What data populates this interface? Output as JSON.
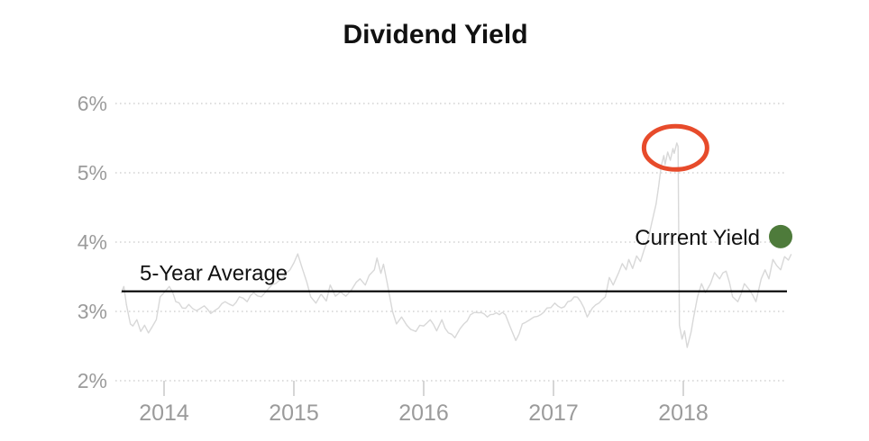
{
  "title": "Dividend Yield",
  "colors": {
    "title_text": "#111111",
    "axis_text": "#9b9b9b",
    "gridline": "#d4d4d4",
    "tick_mark": "#cccccc",
    "series_line": "#d8d8d8",
    "average_line": "#000000",
    "current_yield_dot": "#4e7b3b",
    "highlight_ellipse": "#e74b2b"
  },
  "chart_data": {
    "type": "line",
    "title": "Dividend Yield",
    "xlabel": "",
    "ylabel": "",
    "xlim": [
      2013.6,
      2018.92
    ],
    "ylim": [
      1.85,
      6.35
    ],
    "grid": "horizontal-dotted",
    "x_ticks": [
      {
        "value": 2014,
        "label": "2014"
      },
      {
        "value": 2015,
        "label": "2015"
      },
      {
        "value": 2016,
        "label": "2016"
      },
      {
        "value": 2017,
        "label": "2017"
      },
      {
        "value": 2018,
        "label": "2018"
      }
    ],
    "y_ticks": [
      {
        "value": 6,
        "label": "6%"
      },
      {
        "value": 5,
        "label": "5%"
      },
      {
        "value": 4,
        "label": "4%"
      },
      {
        "value": 3,
        "label": "3%"
      },
      {
        "value": 2,
        "label": "2%"
      }
    ],
    "average_line": {
      "label": "5-Year Average",
      "value": 3.29
    },
    "current_yield": {
      "label": "Current Yield",
      "value": 4.08
    },
    "highlight": {
      "center_x": 2017.94,
      "center_y": 5.36,
      "shape": "ellipse"
    },
    "series": [
      {
        "name": "Dividend Yield",
        "points": [
          [
            2013.67,
            3.27
          ],
          [
            2013.69,
            3.36
          ],
          [
            2013.71,
            3.1
          ],
          [
            2013.74,
            2.82
          ],
          [
            2013.76,
            2.79
          ],
          [
            2013.79,
            2.88
          ],
          [
            2013.82,
            2.71
          ],
          [
            2013.85,
            2.8
          ],
          [
            2013.88,
            2.69
          ],
          [
            2013.91,
            2.78
          ],
          [
            2013.94,
            2.88
          ],
          [
            2013.97,
            3.21
          ],
          [
            2014.0,
            3.27
          ],
          [
            2014.04,
            3.36
          ],
          [
            2014.09,
            3.14
          ],
          [
            2014.14,
            3.05
          ],
          [
            2014.19,
            3.1
          ],
          [
            2014.25,
            3.01
          ],
          [
            2014.31,
            3.08
          ],
          [
            2014.36,
            2.97
          ],
          [
            2014.42,
            3.05
          ],
          [
            2014.47,
            3.14
          ],
          [
            2014.53,
            3.08
          ],
          [
            2014.58,
            3.21
          ],
          [
            2014.64,
            3.14
          ],
          [
            2014.69,
            3.27
          ],
          [
            2014.75,
            3.21
          ],
          [
            2014.81,
            3.34
          ],
          [
            2014.86,
            3.4
          ],
          [
            2014.92,
            3.49
          ],
          [
            2014.97,
            3.6
          ],
          [
            2015.0,
            3.7
          ],
          [
            2015.03,
            3.83
          ],
          [
            2015.06,
            3.65
          ],
          [
            2015.1,
            3.42
          ],
          [
            2015.13,
            3.21
          ],
          [
            2015.17,
            3.12
          ],
          [
            2015.21,
            3.25
          ],
          [
            2015.25,
            3.15
          ],
          [
            2015.28,
            3.38
          ],
          [
            2015.32,
            3.22
          ],
          [
            2015.36,
            3.28
          ],
          [
            2015.4,
            3.22
          ],
          [
            2015.44,
            3.3
          ],
          [
            2015.48,
            3.42
          ],
          [
            2015.51,
            3.47
          ],
          [
            2015.55,
            3.38
          ],
          [
            2015.58,
            3.52
          ],
          [
            2015.62,
            3.6
          ],
          [
            2015.64,
            3.77
          ],
          [
            2015.67,
            3.55
          ],
          [
            2015.69,
            3.68
          ],
          [
            2015.72,
            3.4
          ],
          [
            2015.76,
            3.0
          ],
          [
            2015.79,
            2.82
          ],
          [
            2015.83,
            2.92
          ],
          [
            2015.87,
            2.8
          ],
          [
            2015.9,
            2.74
          ],
          [
            2015.94,
            2.71
          ],
          [
            2015.97,
            2.8
          ],
          [
            2016.0,
            2.79
          ],
          [
            2016.05,
            2.88
          ],
          [
            2016.1,
            2.72
          ],
          [
            2016.14,
            2.88
          ],
          [
            2016.19,
            2.69
          ],
          [
            2016.24,
            2.62
          ],
          [
            2016.28,
            2.75
          ],
          [
            2016.31,
            2.82
          ],
          [
            2016.36,
            2.95
          ],
          [
            2016.42,
            2.98
          ],
          [
            2016.49,
            2.92
          ],
          [
            2016.56,
            2.98
          ],
          [
            2016.63,
            2.95
          ],
          [
            2016.67,
            2.76
          ],
          [
            2016.71,
            2.58
          ],
          [
            2016.76,
            2.82
          ],
          [
            2016.81,
            2.87
          ],
          [
            2016.85,
            2.92
          ],
          [
            2016.9,
            2.95
          ],
          [
            2016.95,
            3.05
          ],
          [
            2017.01,
            3.12
          ],
          [
            2017.06,
            3.05
          ],
          [
            2017.11,
            3.14
          ],
          [
            2017.16,
            3.21
          ],
          [
            2017.21,
            3.14
          ],
          [
            2017.26,
            2.92
          ],
          [
            2017.3,
            3.05
          ],
          [
            2017.35,
            3.12
          ],
          [
            2017.4,
            3.21
          ],
          [
            2017.43,
            3.49
          ],
          [
            2017.46,
            3.38
          ],
          [
            2017.5,
            3.55
          ],
          [
            2017.53,
            3.69
          ],
          [
            2017.56,
            3.6
          ],
          [
            2017.58,
            3.75
          ],
          [
            2017.61,
            3.62
          ],
          [
            2017.64,
            3.8
          ],
          [
            2017.67,
            3.72
          ],
          [
            2017.7,
            3.9
          ],
          [
            2017.73,
            4.05
          ],
          [
            2017.76,
            4.3
          ],
          [
            2017.79,
            4.55
          ],
          [
            2017.81,
            4.8
          ],
          [
            2017.83,
            5.1
          ],
          [
            2017.85,
            5.25
          ],
          [
            2017.86,
            5.12
          ],
          [
            2017.88,
            5.3
          ],
          [
            2017.9,
            5.18
          ],
          [
            2017.92,
            5.35
          ],
          [
            2017.93,
            5.28
          ],
          [
            2017.95,
            5.43
          ],
          [
            2017.96,
            5.38
          ],
          [
            2017.97,
            2.8
          ],
          [
            2017.99,
            2.6
          ],
          [
            2018.01,
            2.72
          ],
          [
            2018.03,
            2.48
          ],
          [
            2018.06,
            2.7
          ],
          [
            2018.08,
            2.92
          ],
          [
            2018.11,
            3.21
          ],
          [
            2018.14,
            3.4
          ],
          [
            2018.17,
            3.27
          ],
          [
            2018.21,
            3.4
          ],
          [
            2018.24,
            3.56
          ],
          [
            2018.28,
            3.47
          ],
          [
            2018.33,
            3.58
          ],
          [
            2018.38,
            3.21
          ],
          [
            2018.42,
            3.14
          ],
          [
            2018.47,
            3.4
          ],
          [
            2018.51,
            3.31
          ],
          [
            2018.56,
            3.14
          ],
          [
            2018.6,
            3.47
          ],
          [
            2018.63,
            3.6
          ],
          [
            2018.66,
            3.47
          ],
          [
            2018.69,
            3.75
          ],
          [
            2018.72,
            3.66
          ],
          [
            2018.75,
            3.6
          ],
          [
            2018.78,
            3.79
          ],
          [
            2018.81,
            3.74
          ],
          [
            2018.83,
            3.82
          ]
        ]
      }
    ]
  }
}
